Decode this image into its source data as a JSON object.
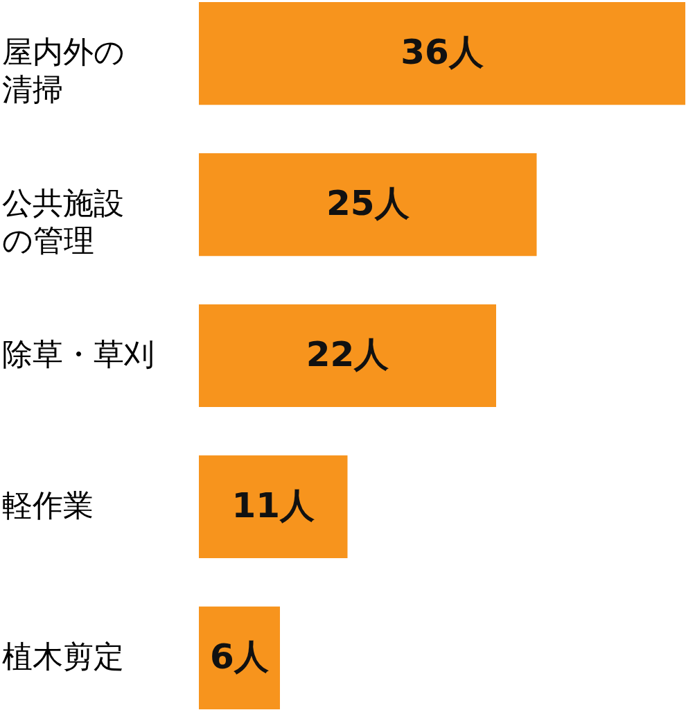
{
  "chart_data": {
    "type": "bar",
    "orientation": "horizontal",
    "categories": [
      "屋内外の清掃",
      "公共施設の管理",
      "除草・草刈",
      "軽作業",
      "植木剪定"
    ],
    "values": [
      36,
      25,
      22,
      11,
      6
    ],
    "color": "#f7941d",
    "value_labels": [
      "36人",
      "25人",
      "22人",
      "11人",
      "6人"
    ]
  }
}
